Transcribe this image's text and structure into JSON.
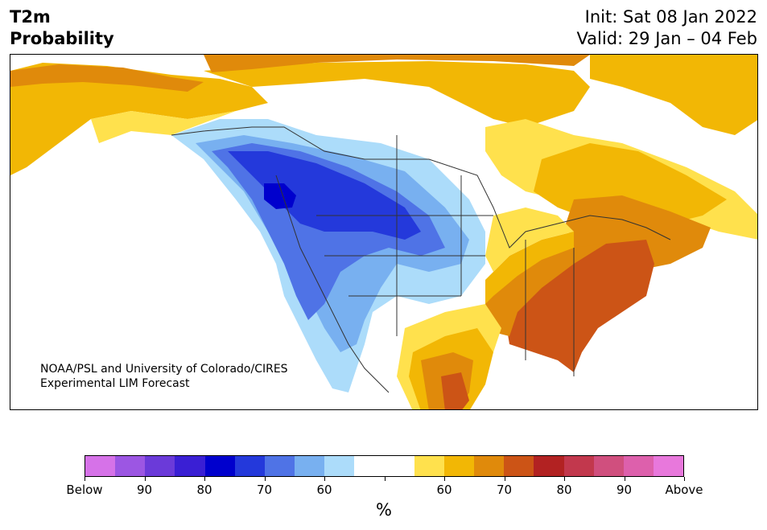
{
  "title": {
    "variable": "T2m",
    "field": "Probability",
    "init": "Init: Sat 08 Jan 2022",
    "valid": "Valid: 29 Jan – 04 Feb"
  },
  "credit": {
    "line1": "NOAA/PSL and University of Colorado/CIRES",
    "line2": "Experimental LIM Forecast"
  },
  "colorbar": {
    "colors": [
      "#d672e8",
      "#9c56e3",
      "#6b3ad9",
      "#3a1fd4",
      "#0000cd",
      "#2439db",
      "#4f73e6",
      "#78b0f0",
      "#acdcfa",
      "#ffffff",
      "#ffffff",
      "#ffe14d",
      "#f2b705",
      "#e08a0b",
      "#cc5416",
      "#b22222",
      "#c2384d",
      "#d04f7e",
      "#dd60ac",
      "#e878dc"
    ],
    "labels": [
      "Below",
      "90",
      "80",
      "70",
      "60",
      "",
      "60",
      "70",
      "80",
      "90",
      "Above"
    ],
    "unit": "%"
  },
  "map": {
    "region": "North America",
    "colors": {
      "below_60": "#acdcfa",
      "below_65": "#78b0f0",
      "below_70": "#4f73e6",
      "below_75": "#2439db",
      "below_80": "#0000cd",
      "above_55": "#ffe14d",
      "above_60": "#f2b705",
      "above_65": "#e08a0b",
      "above_70": "#cc5416",
      "land_outline": "#333333"
    }
  }
}
